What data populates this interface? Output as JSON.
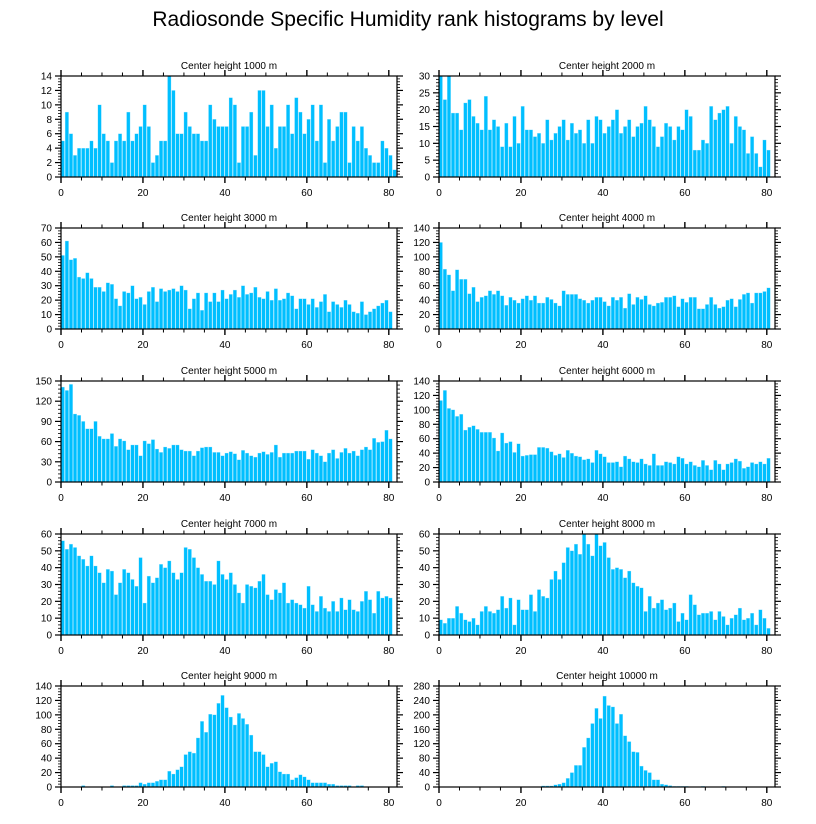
{
  "title": "Radiosonde Specific Humidity rank histograms by level",
  "bar_color": "#00bfff",
  "chart_data": [
    {
      "type": "bar",
      "title": "Center height 1000 m",
      "xlabel": "",
      "ylabel": "",
      "xlim": [
        0,
        82
      ],
      "ylim": [
        0,
        14
      ],
      "xticks": [
        0,
        20,
        40,
        60,
        80
      ],
      "yticks": [
        0,
        2,
        4,
        6,
        8,
        10,
        12,
        14
      ],
      "yaxis_side": "left",
      "x_start": 0,
      "values": [
        5,
        9,
        6,
        3,
        4,
        4,
        4,
        5,
        4,
        10,
        6,
        5,
        2,
        5,
        6,
        5,
        9,
        5,
        6,
        7,
        10,
        7,
        2,
        3,
        5,
        5,
        14,
        12,
        6,
        6,
        9,
        7,
        6,
        6,
        5,
        5,
        10,
        8,
        7,
        7,
        7,
        11,
        10,
        2,
        7,
        7,
        9,
        3,
        12,
        12,
        7,
        10,
        4,
        7,
        7,
        10,
        6,
        11,
        9,
        6,
        8,
        10,
        5,
        10,
        2,
        8,
        5,
        7,
        9,
        9,
        2,
        7,
        5,
        7,
        4,
        3,
        2,
        2,
        5,
        4,
        3,
        1
      ]
    },
    {
      "type": "bar",
      "title": "Center height 2000 m",
      "xlabel": "",
      "ylabel": "",
      "xlim": [
        0,
        82
      ],
      "ylim": [
        0,
        30
      ],
      "xticks": [
        0,
        20,
        40,
        60,
        80
      ],
      "yticks": [
        0,
        5,
        10,
        15,
        20,
        25,
        30
      ],
      "yaxis_side": "left",
      "x_start": 0,
      "values": [
        30,
        23,
        30,
        19,
        19,
        14,
        22,
        23,
        18,
        16,
        14,
        24,
        14,
        17,
        15,
        9,
        16,
        9,
        18,
        10,
        21,
        14,
        14,
        12,
        13,
        10,
        17,
        11,
        13,
        15,
        17,
        11,
        16,
        13,
        14,
        10,
        17,
        10,
        18,
        17,
        13,
        15,
        17,
        20,
        13,
        15,
        17,
        12,
        15,
        16,
        21,
        17,
        15,
        9,
        12,
        16,
        15,
        11,
        15,
        14,
        20,
        18,
        8,
        8,
        11,
        10,
        21,
        17,
        19,
        20,
        21,
        10,
        18,
        15,
        14,
        7,
        12,
        7,
        3,
        11,
        8
      ]
    },
    {
      "type": "bar",
      "title": "Center height 3000 m",
      "xlabel": "",
      "ylabel": "",
      "xlim": [
        0,
        82
      ],
      "ylim": [
        0,
        70
      ],
      "xticks": [
        0,
        20,
        40,
        60,
        80
      ],
      "yticks": [
        0,
        10,
        20,
        30,
        40,
        50,
        60,
        70
      ],
      "yaxis_side": "left",
      "x_start": 0,
      "values": [
        51,
        61,
        48,
        49,
        36,
        35,
        39,
        35,
        29,
        29,
        26,
        32,
        31,
        21,
        16,
        26,
        25,
        30,
        21,
        22,
        17,
        26,
        29,
        19,
        28,
        26,
        27,
        28,
        26,
        30,
        27,
        14,
        21,
        25,
        13,
        25,
        19,
        25,
        19,
        27,
        21,
        24,
        27,
        22,
        30,
        24,
        25,
        29,
        22,
        21,
        26,
        20,
        28,
        20,
        21,
        25,
        23,
        14,
        21,
        21,
        17,
        21,
        15,
        19,
        24,
        12,
        19,
        17,
        15,
        20,
        17,
        12,
        11,
        19,
        10,
        12,
        14,
        16,
        18,
        20,
        12
      ]
    },
    {
      "type": "bar",
      "title": "Center height 4000 m",
      "xlabel": "",
      "ylabel": "",
      "xlim": [
        0,
        82
      ],
      "ylim": [
        0,
        140
      ],
      "xticks": [
        0,
        20,
        40,
        60,
        80
      ],
      "yticks": [
        0,
        20,
        40,
        60,
        80,
        100,
        120,
        140
      ],
      "yaxis_side": "left",
      "x_start": 0,
      "values": [
        120,
        83,
        75,
        53,
        82,
        69,
        69,
        49,
        58,
        38,
        44,
        46,
        53,
        48,
        53,
        46,
        33,
        44,
        40,
        36,
        42,
        46,
        40,
        46,
        36,
        36,
        44,
        41,
        36,
        32,
        53,
        48,
        48,
        48,
        42,
        40,
        36,
        40,
        44,
        44,
        38,
        32,
        44,
        40,
        44,
        29,
        49,
        34,
        44,
        41,
        46,
        34,
        32,
        36,
        37,
        44,
        44,
        46,
        31,
        42,
        37,
        44,
        44,
        28,
        28,
        34,
        44,
        34,
        29,
        31,
        40,
        42,
        31,
        41,
        48,
        50,
        36,
        50,
        50,
        52,
        57
      ]
    },
    {
      "type": "bar",
      "title": "Center height 5000 m",
      "xlabel": "",
      "ylabel": "",
      "xlim": [
        0,
        82
      ],
      "ylim": [
        0,
        150
      ],
      "xticks": [
        0,
        20,
        40,
        60,
        80
      ],
      "yticks": [
        0,
        30,
        60,
        90,
        120,
        150
      ],
      "yaxis_side": "left",
      "x_start": 0,
      "values": [
        141,
        136,
        145,
        101,
        99,
        90,
        79,
        79,
        90,
        68,
        64,
        64,
        72,
        53,
        64,
        61,
        48,
        55,
        55,
        39,
        61,
        57,
        63,
        49,
        44,
        52,
        50,
        55,
        55,
        48,
        46,
        46,
        39,
        46,
        51,
        52,
        52,
        44,
        44,
        39,
        43,
        45,
        42,
        33,
        47,
        43,
        39,
        37,
        43,
        45,
        41,
        44,
        55,
        37,
        43,
        43,
        43,
        46,
        46,
        46,
        34,
        48,
        43,
        39,
        30,
        43,
        48,
        35,
        44,
        50,
        43,
        46,
        39,
        48,
        52,
        48,
        65,
        59,
        60,
        77,
        64
      ]
    },
    {
      "type": "bar",
      "title": "Center height 6000 m",
      "xlabel": "",
      "ylabel": "",
      "xlim": [
        0,
        82
      ],
      "ylim": [
        0,
        140
      ],
      "xticks": [
        0,
        20,
        40,
        60,
        80
      ],
      "yticks": [
        0,
        20,
        40,
        60,
        80,
        100,
        120,
        140
      ],
      "yaxis_side": "left",
      "x_start": 0,
      "values": [
        113,
        127,
        102,
        100,
        91,
        94,
        72,
        76,
        78,
        73,
        69,
        69,
        69,
        61,
        43,
        68,
        54,
        56,
        41,
        53,
        36,
        37,
        38,
        38,
        48,
        48,
        47,
        42,
        37,
        39,
        34,
        44,
        40,
        36,
        35,
        31,
        32,
        27,
        44,
        39,
        35,
        27,
        27,
        28,
        21,
        36,
        32,
        28,
        27,
        32,
        25,
        23,
        39,
        23,
        23,
        28,
        27,
        25,
        35,
        33,
        25,
        28,
        23,
        21,
        30,
        23,
        17,
        30,
        25,
        17,
        25,
        27,
        32,
        29,
        19,
        21,
        27,
        25,
        28,
        25,
        33
      ]
    },
    {
      "type": "bar",
      "title": "Center height 7000 m",
      "xlabel": "",
      "ylabel": "",
      "xlim": [
        0,
        82
      ],
      "ylim": [
        0,
        60
      ],
      "xticks": [
        0,
        20,
        40,
        60,
        80
      ],
      "yticks": [
        0,
        10,
        20,
        30,
        40,
        50,
        60
      ],
      "yaxis_side": "left",
      "x_start": 0,
      "values": [
        56,
        51,
        54,
        52,
        47,
        45,
        41,
        47,
        41,
        37,
        31,
        39,
        38,
        24,
        31,
        39,
        37,
        33,
        29,
        46,
        19,
        35,
        31,
        34,
        42,
        40,
        44,
        37,
        33,
        37,
        52,
        51,
        46,
        40,
        36,
        32,
        32,
        30,
        44,
        36,
        33,
        37,
        30,
        25,
        19,
        30,
        29,
        28,
        32,
        36,
        24,
        21,
        27,
        25,
        31,
        19,
        21,
        19,
        18,
        16,
        29,
        18,
        14,
        23,
        16,
        14,
        20,
        14,
        22,
        15,
        21,
        15,
        14,
        20,
        26,
        21,
        13,
        26,
        22,
        23,
        22
      ]
    },
    {
      "type": "bar",
      "title": "Center height 8000 m",
      "xlabel": "",
      "ylabel": "",
      "xlim": [
        0,
        82
      ],
      "ylim": [
        0,
        60
      ],
      "xticks": [
        0,
        20,
        40,
        60,
        80
      ],
      "yticks": [
        0,
        10,
        20,
        30,
        40,
        50,
        60
      ],
      "yaxis_side": "left",
      "x_start": 0,
      "values": [
        9,
        7,
        10,
        10,
        17,
        13,
        9,
        8,
        10,
        6,
        14,
        17,
        14,
        13,
        15,
        23,
        16,
        22,
        6,
        21,
        15,
        15,
        24,
        14,
        27,
        23,
        22,
        33,
        38,
        33,
        43,
        52,
        50,
        54,
        48,
        60,
        54,
        47,
        60,
        53,
        55,
        46,
        39,
        40,
        39,
        34,
        38,
        31,
        29,
        28,
        14,
        23,
        16,
        19,
        21,
        15,
        16,
        19,
        8,
        13,
        9,
        24,
        18,
        12,
        13,
        13,
        14,
        9,
        14,
        11,
        6,
        10,
        12,
        16,
        9,
        10,
        13,
        6,
        15,
        10,
        4
      ]
    },
    {
      "type": "bar",
      "title": "Center height 9000 m",
      "xlabel": "",
      "ylabel": "",
      "xlim": [
        0,
        82
      ],
      "ylim": [
        0,
        140
      ],
      "xticks": [
        0,
        20,
        40,
        60,
        80
      ],
      "yticks": [
        0,
        20,
        40,
        60,
        80,
        100,
        120,
        140
      ],
      "yaxis_side": "left",
      "x_start": 0,
      "values": [
        0,
        0,
        0,
        0,
        0,
        2,
        0,
        0,
        0,
        0,
        0,
        0,
        2,
        0,
        0,
        2,
        2,
        2,
        2,
        6,
        4,
        6,
        6,
        8,
        10,
        10,
        22,
        18,
        24,
        28,
        45,
        49,
        47,
        68,
        91,
        76,
        101,
        100,
        116,
        127,
        110,
        97,
        86,
        102,
        95,
        87,
        72,
        49,
        49,
        45,
        28,
        33,
        35,
        21,
        18,
        18,
        10,
        13,
        17,
        14,
        10,
        6,
        6,
        6,
        6,
        4,
        4,
        2,
        2,
        2,
        2,
        0,
        2,
        2,
        0,
        0,
        0,
        0,
        0,
        0,
        0,
        0
      ]
    },
    {
      "type": "bar",
      "title": "Center height 10000 m",
      "xlabel": "",
      "ylabel": "",
      "xlim": [
        0,
        82
      ],
      "ylim": [
        0,
        280
      ],
      "xticks": [
        0,
        20,
        40,
        60,
        80
      ],
      "yticks": [
        0,
        40,
        80,
        120,
        160,
        200,
        240,
        280
      ],
      "yaxis_side": "left",
      "x_start": 0,
      "values": [
        0,
        0,
        0,
        0,
        0,
        0,
        0,
        0,
        0,
        0,
        0,
        0,
        0,
        0,
        0,
        0,
        0,
        0,
        0,
        0,
        0,
        0,
        0,
        0,
        0,
        3,
        3,
        3,
        6,
        8,
        12,
        24,
        40,
        60,
        60,
        110,
        136,
        176,
        218,
        190,
        252,
        226,
        222,
        176,
        202,
        142,
        126,
        98,
        96,
        58,
        46,
        40,
        20,
        20,
        8,
        6,
        4,
        2,
        2,
        2,
        2,
        0,
        0,
        0,
        2,
        0,
        0,
        0,
        0,
        2,
        0,
        0,
        0,
        0,
        0,
        0,
        0,
        0,
        0,
        0,
        0,
        0
      ]
    }
  ]
}
